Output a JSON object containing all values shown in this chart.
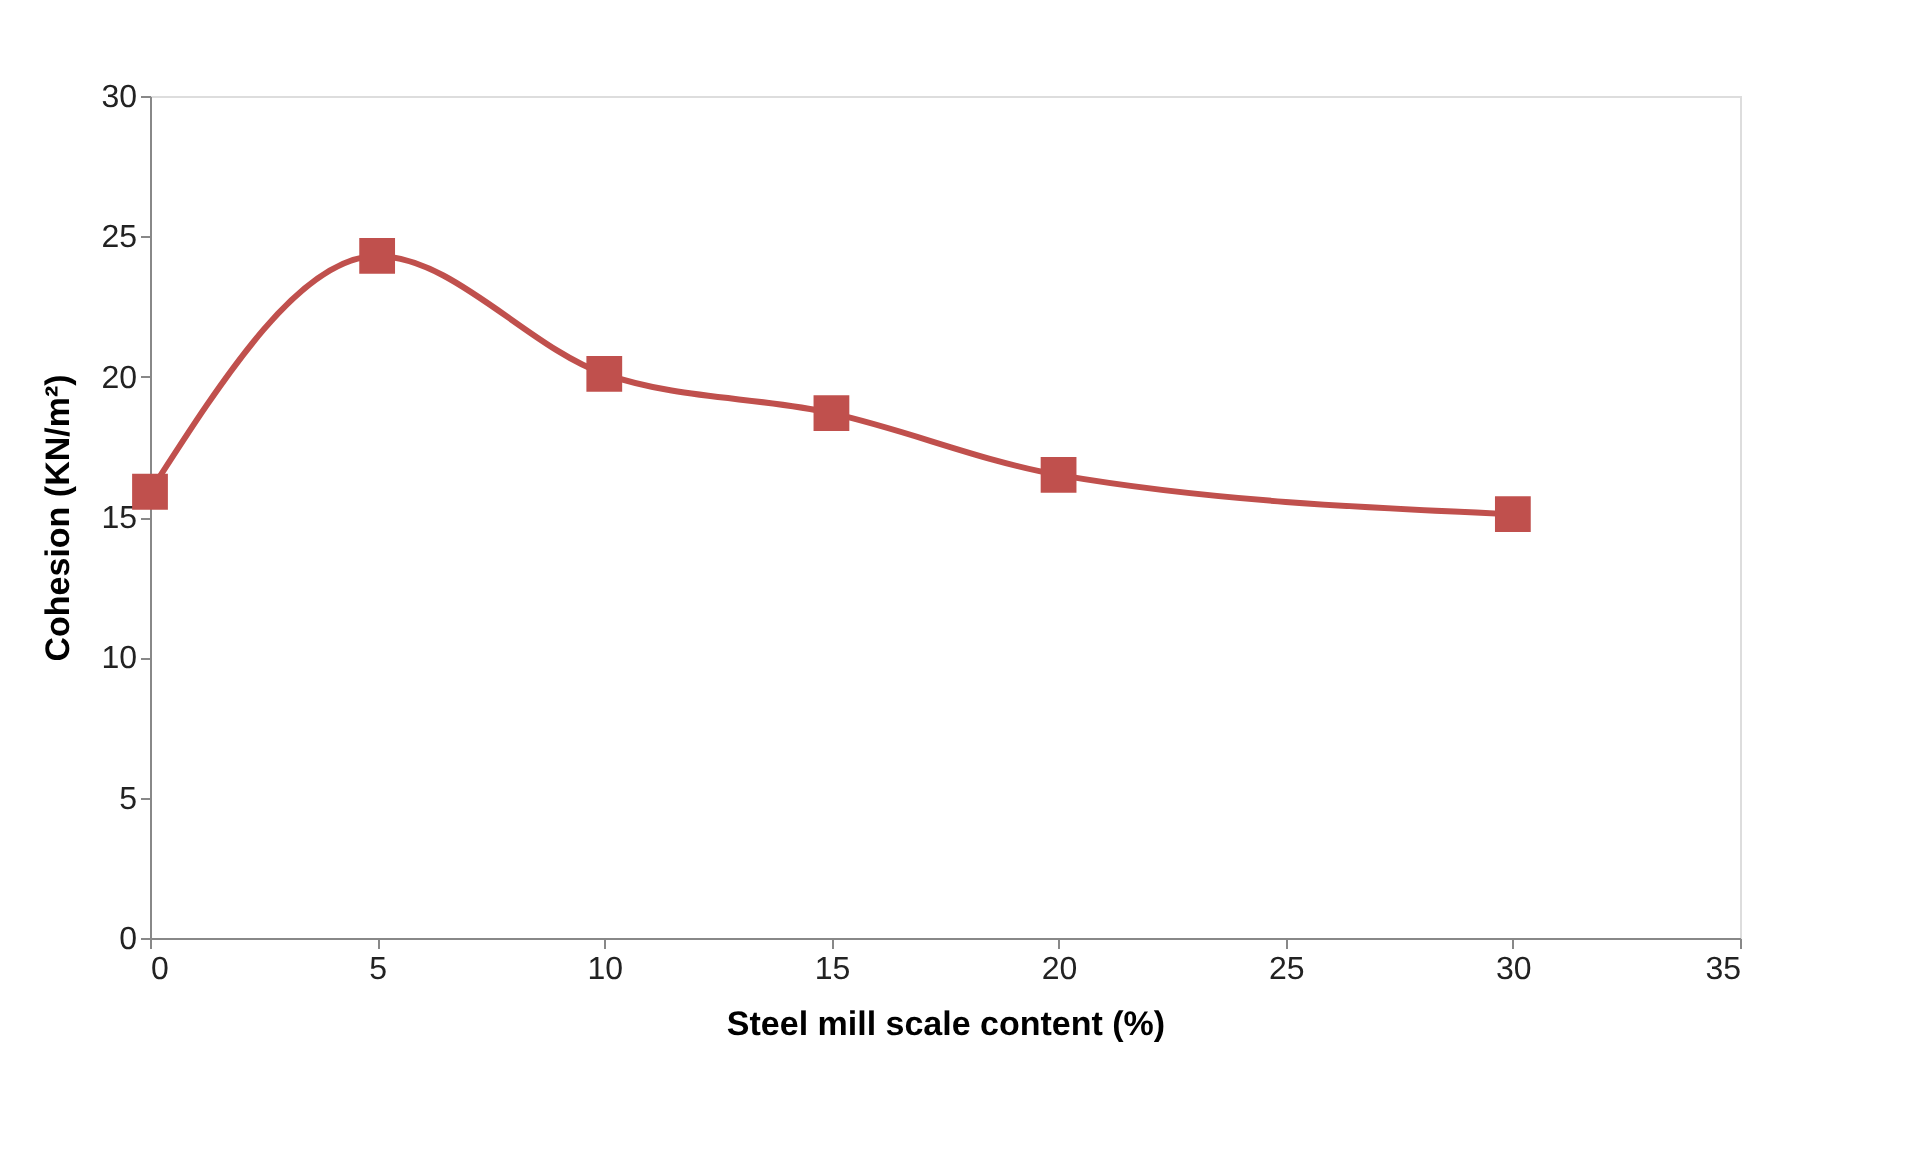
{
  "chart_data": {
    "type": "line",
    "xlabel": "Steel mill scale content (%)",
    "ylabel": "Cohesion (KN/m²)",
    "x": [
      0,
      5,
      10,
      15,
      20,
      30
    ],
    "series": [
      {
        "color": "#c0504d",
        "values": [
          15.9,
          24.3,
          20.1,
          18.7,
          16.5,
          15.1
        ]
      }
    ],
    "xlim": [
      0,
      35
    ],
    "xticks": [
      0,
      5,
      10,
      15,
      20,
      25,
      30,
      35
    ],
    "ylim": [
      0,
      30
    ],
    "yticks": [
      0,
      5,
      10,
      15,
      20,
      25,
      30
    ],
    "marker": "square",
    "grid": false,
    "legend": false
  }
}
